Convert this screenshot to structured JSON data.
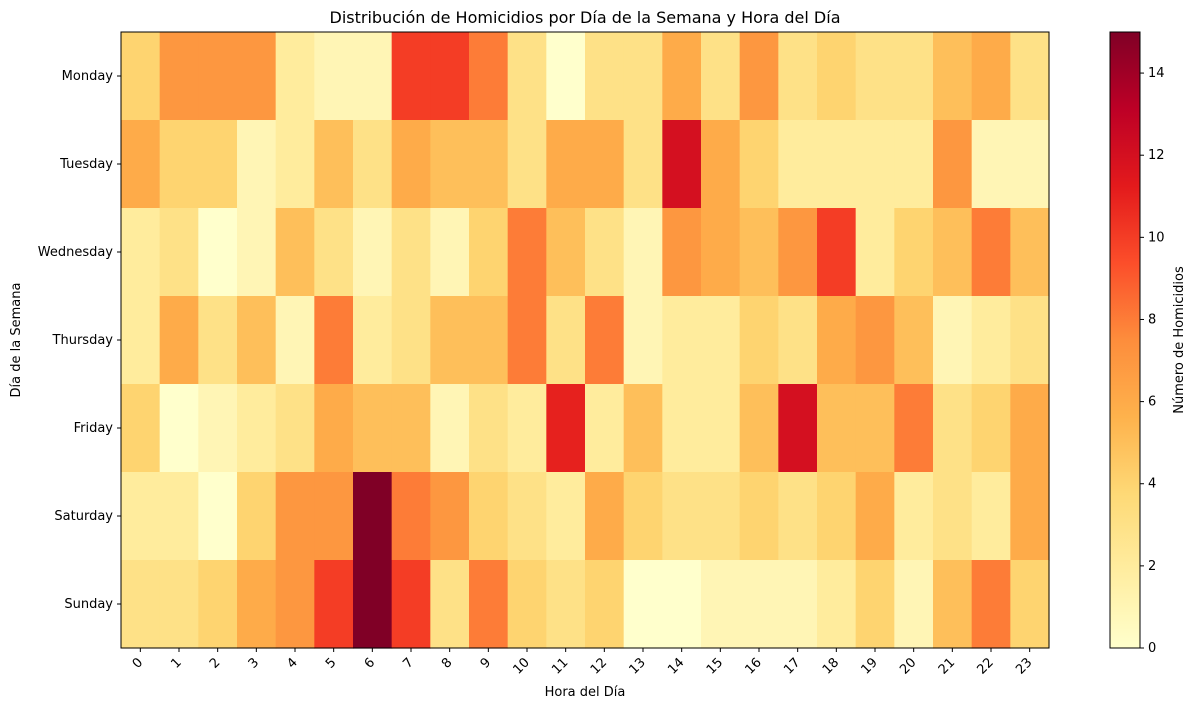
{
  "chart_data": {
    "type": "heatmap",
    "title": "Distribución de Homicidios por Día de la Semana y Hora del Día",
    "xlabel": "Hora del Día",
    "ylabel": "Día de la Semana",
    "x_categories": [
      "0",
      "1",
      "2",
      "3",
      "4",
      "5",
      "6",
      "7",
      "8",
      "9",
      "10",
      "11",
      "12",
      "13",
      "14",
      "15",
      "16",
      "17",
      "18",
      "19",
      "20",
      "21",
      "22",
      "23"
    ],
    "y_categories": [
      "Monday",
      "Tuesday",
      "Wednesday",
      "Thursday",
      "Friday",
      "Saturday",
      "Sunday"
    ],
    "values": [
      [
        4,
        7,
        7,
        7,
        2,
        1,
        1,
        10,
        10,
        8,
        3,
        0,
        3,
        3,
        6,
        3,
        7,
        3,
        4,
        3,
        3,
        5,
        6,
        3
      ],
      [
        6,
        4,
        4,
        1,
        2,
        5,
        3,
        6,
        5,
        5,
        3,
        6,
        6,
        3,
        12,
        6,
        4,
        2,
        2,
        2,
        2,
        7,
        1,
        1
      ],
      [
        2,
        3,
        0,
        1,
        5,
        3,
        1,
        3,
        1,
        4,
        8,
        5,
        3,
        1,
        7,
        6,
        5,
        7,
        10,
        2,
        4,
        5,
        8,
        5
      ],
      [
        2,
        6,
        3,
        5,
        1,
        8,
        2,
        3,
        5,
        5,
        8,
        3,
        8,
        1,
        2,
        2,
        4,
        3,
        6,
        7,
        5,
        1,
        2,
        3
      ],
      [
        4,
        0,
        1,
        2,
        3,
        6,
        5,
        5,
        1,
        3,
        2,
        11,
        2,
        5,
        2,
        2,
        5,
        12,
        5,
        5,
        8,
        3,
        4,
        6
      ],
      [
        2,
        2,
        0,
        4,
        7,
        7,
        15,
        8,
        7,
        4,
        3,
        2,
        6,
        4,
        3,
        3,
        4,
        3,
        4,
        6,
        2,
        3,
        2,
        6
      ],
      [
        3,
        3,
        4,
        6,
        7,
        10,
        15,
        10,
        3,
        8,
        4,
        3,
        4,
        0,
        0,
        1,
        1,
        1,
        2,
        4,
        1,
        5,
        8,
        4
      ]
    ],
    "colorbar": {
      "label": "Número de Homicidios",
      "min": 0,
      "max": 15,
      "ticks": [
        "0",
        "2",
        "4",
        "6",
        "8",
        "10",
        "12",
        "14"
      ],
      "colormap": "YlOrRd"
    }
  }
}
